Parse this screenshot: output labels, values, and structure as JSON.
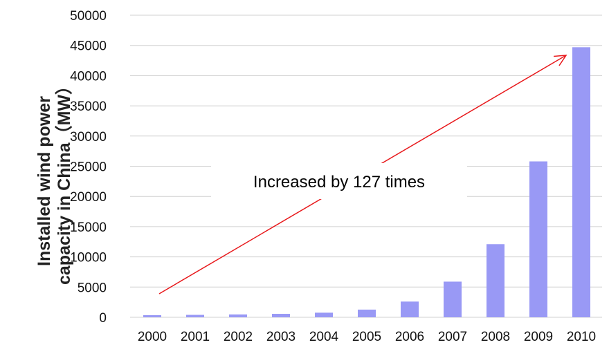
{
  "chart_data": {
    "type": "bar",
    "categories": [
      "2000",
      "2001",
      "2002",
      "2003",
      "2004",
      "2005",
      "2006",
      "2007",
      "2008",
      "2009",
      "2010"
    ],
    "values": [
      350,
      400,
      470,
      570,
      760,
      1270,
      2600,
      5900,
      12100,
      25800,
      44700
    ],
    "ylabel_line1": "Installed wind power",
    "ylabel_line2": "capacity in China（MW）",
    "ylim": [
      0,
      50000
    ],
    "yticks": [
      0,
      5000,
      10000,
      15000,
      20000,
      25000,
      30000,
      35000,
      40000,
      45000,
      50000
    ],
    "grid": true,
    "bar_color": "#9999f5",
    "annotation": "Increased by 127 times",
    "arrow_color": "#e8191c"
  }
}
